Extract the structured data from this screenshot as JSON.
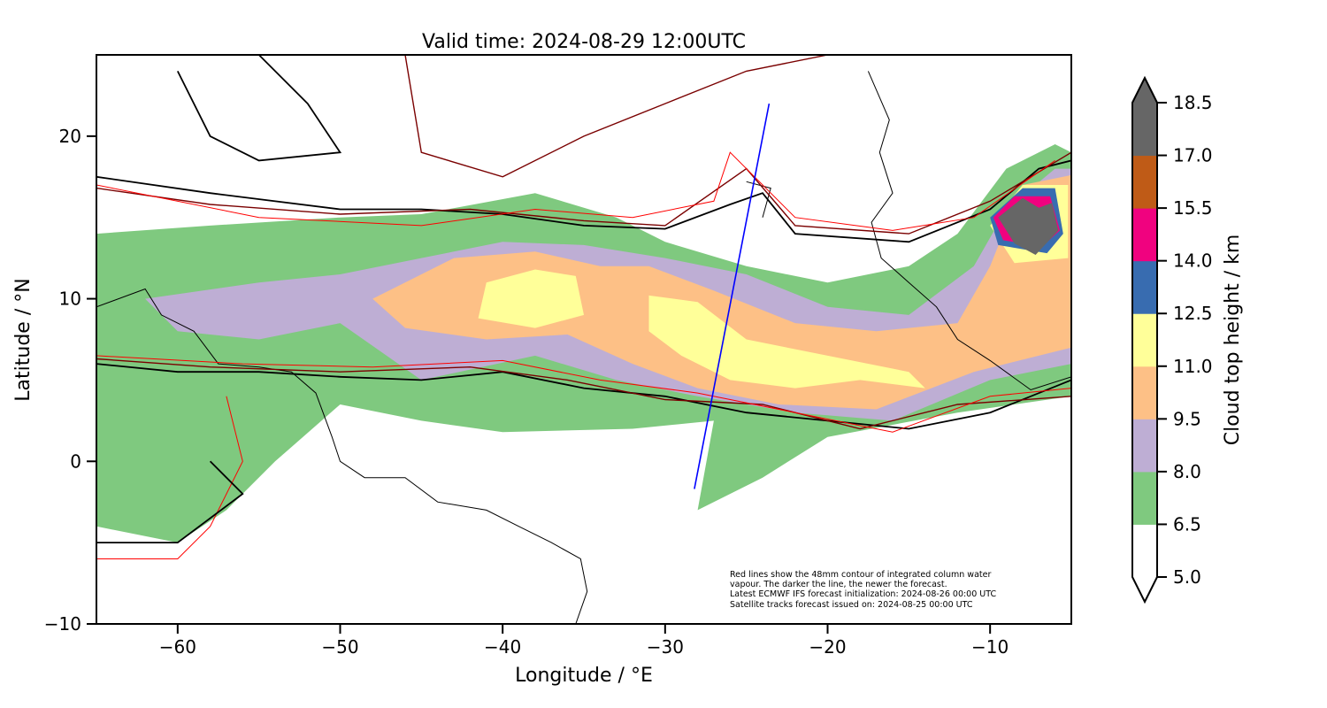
{
  "chart_data": {
    "type": "heatmap",
    "title": "Valid time: 2024-08-29 12:00UTC",
    "xlabel": "Longitude / °E",
    "ylabel": "Latitude / °N",
    "xlim": [
      -65,
      -5
    ],
    "ylim": [
      -10,
      25
    ],
    "xticks": [
      -60,
      -50,
      -40,
      -30,
      -20,
      -10
    ],
    "xtick_labels": [
      "−60",
      "−50",
      "−40",
      "−30",
      "−20",
      "−10"
    ],
    "yticks": [
      -10,
      0,
      10,
      20
    ],
    "ytick_labels": [
      "−10",
      "0",
      "10",
      "20"
    ],
    "annotation": [
      "Red lines show the 48mm contour of integrated column water",
      "vapour. The darker the line, the newer the forecast.",
      "Latest ECMWF IFS forecast initialization: 2024-08-26 00:00 UTC",
      "Satellite tracks forecast issued on: 2024-08-25 00:00 UTC"
    ],
    "colorbar": {
      "label": "Cloud top height / km",
      "levels": [
        5.0,
        6.5,
        8.0,
        9.5,
        11.0,
        12.5,
        14.0,
        15.5,
        17.0,
        18.5
      ],
      "level_labels": [
        "5.0",
        "6.5",
        "8.0",
        "9.5",
        "11.0",
        "12.5",
        "14.0",
        "15.5",
        "17.0",
        "18.5"
      ],
      "colors": [
        "#ffffff",
        "#7fc97f",
        "#beaed4",
        "#fdc086",
        "#ffff99",
        "#386cb0",
        "#f0027f",
        "#bf5b17",
        "#666666"
      ],
      "extend": "both"
    },
    "cloud_regions": [
      {
        "level": 1,
        "coords": [
          [
            -65,
            14
          ],
          [
            -58,
            14.5
          ],
          [
            -50,
            15
          ],
          [
            -45,
            15.2
          ],
          [
            -38,
            16.5
          ],
          [
            -33,
            15
          ],
          [
            -30,
            13.5
          ],
          [
            -25,
            12
          ],
          [
            -20,
            11
          ],
          [
            -15,
            12
          ],
          [
            -12,
            14
          ],
          [
            -9,
            18
          ],
          [
            -6,
            19.5
          ],
          [
            -5,
            19
          ],
          [
            -5,
            4
          ],
          [
            -12,
            3
          ],
          [
            -20,
            1.5
          ],
          [
            -24,
            -1
          ],
          [
            -28,
            -3
          ],
          [
            -27,
            2.5
          ],
          [
            -32,
            2
          ],
          [
            -40,
            1.8
          ],
          [
            -45,
            2.5
          ],
          [
            -50,
            3.5
          ],
          [
            -54,
            0
          ],
          [
            -57,
            -3
          ],
          [
            -60,
            -5
          ],
          [
            -65,
            -4
          ]
        ]
      },
      {
        "level": 2,
        "coords": [
          [
            -62,
            10
          ],
          [
            -55,
            11
          ],
          [
            -50,
            11.5
          ],
          [
            -45,
            12.5
          ],
          [
            -40,
            13.5
          ],
          [
            -35,
            13.3
          ],
          [
            -30,
            12.5
          ],
          [
            -25,
            11.5
          ],
          [
            -20,
            9.5
          ],
          [
            -15,
            9
          ],
          [
            -11,
            12
          ],
          [
            -9,
            15.5
          ],
          [
            -6,
            18
          ],
          [
            -5,
            18
          ],
          [
            -5,
            6
          ],
          [
            -10,
            5
          ],
          [
            -16,
            2.5
          ],
          [
            -22,
            3
          ],
          [
            -28,
            4
          ],
          [
            -33,
            5
          ],
          [
            -38,
            6.5
          ],
          [
            -45,
            5
          ],
          [
            -50,
            8.5
          ],
          [
            -55,
            7.5
          ],
          [
            -60,
            8
          ]
        ]
      },
      {
        "level": 3,
        "coords": [
          [
            -48,
            10
          ],
          [
            -43,
            12.5
          ],
          [
            -38,
            12.9
          ],
          [
            -34,
            12
          ],
          [
            -31,
            12
          ],
          [
            -27,
            10.5
          ],
          [
            -22,
            8.5
          ],
          [
            -17,
            8
          ],
          [
            -12,
            8.5
          ],
          [
            -10,
            12
          ],
          [
            -8,
            17
          ],
          [
            -5,
            17.6
          ],
          [
            -5,
            7
          ],
          [
            -11,
            5.5
          ],
          [
            -17,
            3.2
          ],
          [
            -23,
            3.5
          ],
          [
            -28,
            4.5
          ],
          [
            -32,
            6
          ],
          [
            -36,
            7.8
          ],
          [
            -41,
            7.5
          ],
          [
            -46,
            8.2
          ]
        ]
      },
      {
        "level": 4,
        "coords": [
          [
            -41,
            11
          ],
          [
            -38,
            11.8
          ],
          [
            -35.5,
            11.4
          ],
          [
            -35,
            9
          ],
          [
            -38,
            8.2
          ],
          [
            -41.5,
            8.8
          ]
        ]
      },
      {
        "level": 4,
        "coords": [
          [
            -31,
            10.2
          ],
          [
            -28,
            9.8
          ],
          [
            -25,
            7.5
          ],
          [
            -20,
            6.5
          ],
          [
            -15,
            5.5
          ],
          [
            -14,
            4.5
          ],
          [
            -18,
            5
          ],
          [
            -22,
            4.5
          ],
          [
            -26,
            5
          ],
          [
            -29,
            6.5
          ],
          [
            -31,
            8
          ]
        ]
      },
      {
        "level": 4,
        "coords": [
          [
            -10,
            14.5
          ],
          [
            -8,
            17
          ],
          [
            -5.2,
            17
          ],
          [
            -5.2,
            12.5
          ],
          [
            -8.5,
            12.2
          ]
        ]
      },
      {
        "level": 5,
        "coords": [
          [
            -10,
            15
          ],
          [
            -8,
            16.8
          ],
          [
            -6,
            16.8
          ],
          [
            -5.5,
            14
          ],
          [
            -6.5,
            12.8
          ],
          [
            -9.5,
            13.3
          ]
        ]
      },
      {
        "level": 6,
        "coords": [
          [
            -9.8,
            15
          ],
          [
            -8.5,
            16.3
          ],
          [
            -6.3,
            16.3
          ],
          [
            -5.7,
            14.2
          ],
          [
            -6.8,
            13.2
          ],
          [
            -9.2,
            13.6
          ]
        ]
      },
      {
        "level": 8,
        "coords": [
          [
            -9.5,
            15
          ],
          [
            -8,
            16.2
          ],
          [
            -7,
            15.6
          ],
          [
            -6.2,
            15.9
          ],
          [
            -5.8,
            14.2
          ],
          [
            -7.2,
            12.7
          ],
          [
            -8.5,
            13.4
          ]
        ]
      }
    ],
    "satellite_track": [
      [
        -28.2,
        -1.7
      ],
      [
        -23.6,
        22
      ]
    ]
  }
}
